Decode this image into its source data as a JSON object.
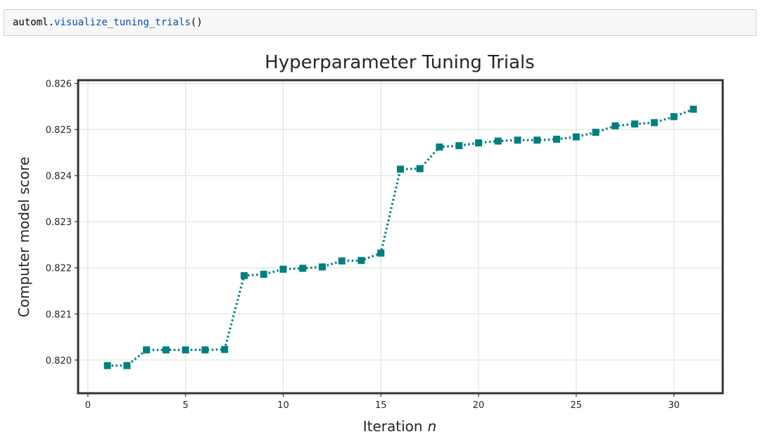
{
  "notebook": {
    "code": {
      "object": "automl",
      "dot": ".",
      "method": "visualize_tuning_trials",
      "parens": "()"
    }
  },
  "colors": {
    "series": "#007f7f",
    "grid": "#d6ead6",
    "frame": "#333333",
    "code_function": "#0055aa",
    "code_cell_background": "#f7f7f7"
  },
  "chart_data": {
    "type": "line",
    "title": "Hyperparameter Tuning Trials",
    "xlabel": "Iteration",
    "xlabel_italic_suffix": "n",
    "ylabel": "Computer model score",
    "xlim": [
      -0.5,
      32.5
    ],
    "ylim": [
      0.81928,
      0.82607
    ],
    "x_ticks": [
      0,
      5,
      10,
      15,
      20,
      25,
      30
    ],
    "x_tick_labels": [
      "0",
      "5",
      "10",
      "15",
      "20",
      "25",
      "30"
    ],
    "y_ticks": [
      0.82,
      0.821,
      0.822,
      0.823,
      0.824,
      0.825,
      0.826
    ],
    "y_tick_labels": [
      "0.820",
      "0.821",
      "0.822",
      "0.823",
      "0.824",
      "0.825",
      "0.826"
    ],
    "grid": true,
    "line_style": "dotted",
    "marker": "square",
    "series": [
      {
        "x": [
          1,
          2,
          3,
          4,
          5,
          6,
          7,
          8,
          9,
          10,
          11,
          12,
          13,
          14,
          15,
          16,
          17,
          18,
          19,
          20,
          21,
          22,
          23,
          24,
          25,
          26,
          27,
          28,
          29,
          30,
          31
        ],
        "values": [
          0.81988,
          0.81988,
          0.82022,
          0.82022,
          0.82022,
          0.82022,
          0.82023,
          0.82183,
          0.82186,
          0.82197,
          0.82199,
          0.82202,
          0.82215,
          0.82216,
          0.82232,
          0.82414,
          0.82415,
          0.82462,
          0.82465,
          0.82471,
          0.82475,
          0.82477,
          0.82477,
          0.82479,
          0.82484,
          0.82494,
          0.82508,
          0.82512,
          0.82515,
          0.82528,
          0.82544
        ]
      }
    ]
  }
}
